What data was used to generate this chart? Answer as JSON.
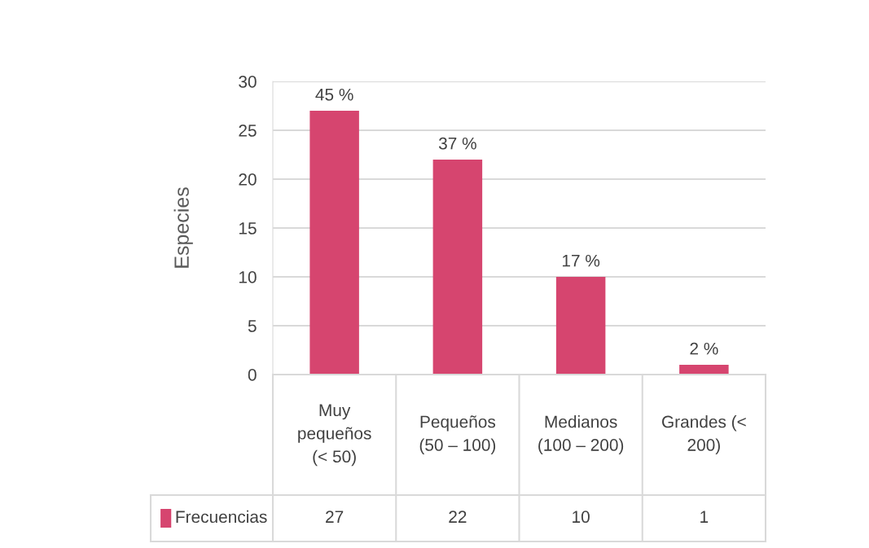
{
  "chart_data": {
    "type": "bar",
    "ylabel": "Especies",
    "categories": [
      "Muy\npequeños\n(< 50)",
      "Pequeños\n(50 – 100)",
      "Medianos\n(100 – 200)",
      "Grandes (<\n200)"
    ],
    "series": [
      {
        "name": "Frecuencias",
        "color": "#d6456f",
        "values": [
          27,
          22,
          10,
          1
        ]
      }
    ],
    "ylim": [
      0,
      30
    ],
    "yticks": [
      0,
      5,
      10,
      15,
      20,
      25,
      30
    ],
    "grid": "y",
    "data_labels": true,
    "annotations": [
      {
        "text": "45 %",
        "x": "Muy\npequeños\n(< 50)",
        "y": 27
      },
      {
        "text": "37 %",
        "x": "Pequeños\n(50 – 100)",
        "y": 22
      },
      {
        "text": "17 %",
        "x": "Medianos\n(100 – 200)",
        "y": 10
      },
      {
        "text": "2 %",
        "x": "Grandes (<\n200)",
        "y": 1
      }
    ]
  }
}
